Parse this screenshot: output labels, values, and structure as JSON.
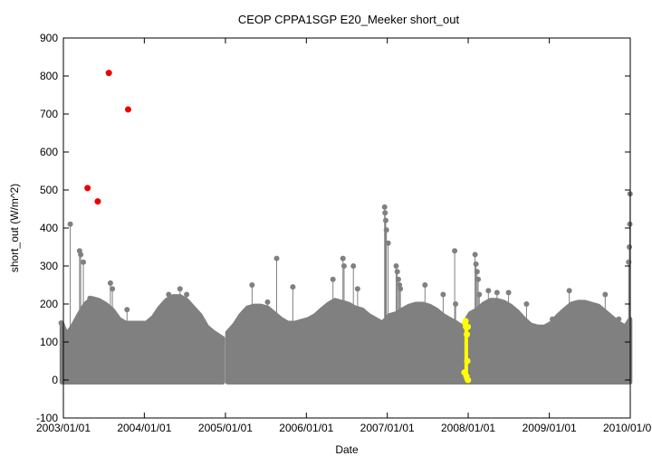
{
  "chart_data": {
    "type": "scatter",
    "title": "CEOP CPPA1SGP E20_Meeker  short_out",
    "xlabel": "Date",
    "ylabel": "short_out (W/m^2)",
    "xlim": [
      "2003-01-01",
      "2010-01-01"
    ],
    "ylim": [
      -100,
      900
    ],
    "x_ticks": [
      "2003/01/01",
      "2004/01/01",
      "2005/01/01",
      "2006/01/01",
      "2007/01/01",
      "2008/01/01",
      "2009/01/01",
      "2010/01/01"
    ],
    "y_ticks": [
      -100,
      0,
      100,
      200,
      300,
      400,
      500,
      600,
      700,
      800,
      900
    ],
    "grid": false,
    "colors": {
      "normal": "#808080",
      "flagged_high": "#ee0000",
      "flagged_yellow": "#ffff00"
    },
    "series": [
      {
        "style": "gray-daily-envelope",
        "envelope": [
          [
            "2002-12-25",
            150
          ],
          [
            "2003-01-15",
            120
          ],
          [
            "2003-02-10",
            140
          ],
          [
            "2003-03-10",
            170
          ],
          [
            "2003-04-10",
            200
          ],
          [
            "2003-05-10",
            215
          ],
          [
            "2003-06-10",
            210
          ],
          [
            "2003-07-10",
            200
          ],
          [
            "2003-08-10",
            185
          ],
          [
            "2003-09-10",
            160
          ],
          [
            "2003-10-10",
            150
          ],
          [
            "2003-11-10",
            150
          ],
          [
            "2003-12-10",
            150
          ],
          [
            "2004-01-10",
            150
          ],
          [
            "2004-02-10",
            165
          ],
          [
            "2004-03-10",
            190
          ],
          [
            "2004-04-10",
            210
          ],
          [
            "2004-05-10",
            220
          ],
          [
            "2004-06-10",
            220
          ],
          [
            "2004-07-10",
            210
          ],
          [
            "2004-08-10",
            190
          ],
          [
            "2004-09-10",
            170
          ],
          [
            "2004-10-10",
            140
          ],
          [
            "2004-11-10",
            125
          ],
          [
            "2004-12-20",
            110
          ],
          null,
          [
            "2005-01-10",
            125
          ],
          [
            "2005-02-10",
            145
          ],
          [
            "2005-03-10",
            170
          ],
          [
            "2005-04-10",
            190
          ],
          [
            "2005-05-10",
            195
          ],
          [
            "2005-06-10",
            195
          ],
          [
            "2005-07-10",
            190
          ],
          [
            "2005-08-10",
            175
          ],
          [
            "2005-09-10",
            160
          ],
          [
            "2005-10-10",
            150
          ],
          [
            "2005-11-10",
            150
          ],
          [
            "2005-12-10",
            155
          ],
          [
            "2006-01-10",
            160
          ],
          [
            "2006-02-10",
            170
          ],
          [
            "2006-03-10",
            185
          ],
          [
            "2006-04-10",
            200
          ],
          [
            "2006-05-10",
            210
          ],
          [
            "2006-06-10",
            205
          ],
          [
            "2006-07-10",
            200
          ],
          [
            "2006-08-10",
            190
          ],
          [
            "2006-09-10",
            185
          ],
          [
            "2006-10-10",
            170
          ],
          [
            "2006-11-10",
            160
          ],
          [
            "2006-12-10",
            150
          ],
          [
            "2007-01-10",
            170
          ],
          [
            "2007-02-10",
            175
          ],
          [
            "2007-03-10",
            185
          ],
          [
            "2007-04-10",
            195
          ],
          [
            "2007-05-10",
            200
          ],
          [
            "2007-06-10",
            200
          ],
          [
            "2007-07-10",
            195
          ],
          [
            "2007-08-10",
            185
          ],
          [
            "2007-09-10",
            170
          ],
          [
            "2007-10-10",
            160
          ],
          [
            "2007-11-10",
            150
          ],
          [
            "2007-12-05",
            140
          ],
          [
            "2008-01-10",
            175
          ],
          [
            "2008-02-10",
            185
          ],
          [
            "2008-03-10",
            200
          ],
          [
            "2008-04-10",
            210
          ],
          [
            "2008-05-10",
            210
          ],
          [
            "2008-06-10",
            205
          ],
          [
            "2008-07-10",
            195
          ],
          [
            "2008-08-10",
            180
          ],
          [
            "2008-09-10",
            160
          ],
          [
            "2008-10-10",
            145
          ],
          [
            "2008-11-10",
            140
          ],
          [
            "2008-12-10",
            140
          ],
          [
            "2009-01-10",
            150
          ],
          [
            "2009-02-10",
            170
          ],
          [
            "2009-03-10",
            185
          ],
          [
            "2009-04-10",
            200
          ],
          [
            "2009-05-10",
            205
          ],
          [
            "2009-06-10",
            205
          ],
          [
            "2009-07-10",
            200
          ],
          [
            "2009-08-10",
            195
          ],
          [
            "2009-09-10",
            180
          ],
          [
            "2009-10-10",
            165
          ],
          [
            "2009-11-10",
            150
          ],
          [
            "2009-12-10",
            140
          ],
          [
            "2009-12-31",
            160
          ]
        ],
        "spikes": [
          [
            "2002-12-22",
            150
          ],
          [
            "2003-02-01",
            410
          ],
          [
            "2003-03-15",
            340
          ],
          [
            "2003-03-20",
            330
          ],
          [
            "2003-04-01",
            310
          ],
          [
            "2003-05-01",
            215
          ],
          [
            "2003-06-15",
            190
          ],
          [
            "2003-08-01",
            255
          ],
          [
            "2003-08-10",
            240
          ],
          [
            "2003-10-15",
            185
          ],
          [
            "2004-04-20",
            225
          ],
          [
            "2004-06-10",
            240
          ],
          [
            "2004-07-10",
            225
          ],
          [
            "2005-05-01",
            250
          ],
          [
            "2005-07-10",
            205
          ],
          [
            "2005-08-20",
            320
          ],
          [
            "2005-11-01",
            245
          ],
          [
            "2006-05-01",
            265
          ],
          [
            "2006-06-15",
            320
          ],
          [
            "2006-06-20",
            300
          ],
          [
            "2006-08-01",
            300
          ],
          [
            "2006-08-20",
            240
          ],
          [
            "2006-12-20",
            455
          ],
          [
            "2006-12-22",
            440
          ],
          [
            "2006-12-25",
            420
          ],
          [
            "2006-12-28",
            395
          ],
          [
            "2007-01-05",
            360
          ],
          [
            "2007-02-10",
            300
          ],
          [
            "2007-02-15",
            285
          ],
          [
            "2007-02-20",
            265
          ],
          [
            "2007-02-25",
            250
          ],
          [
            "2007-03-01",
            240
          ],
          [
            "2007-06-20",
            250
          ],
          [
            "2007-09-10",
            225
          ],
          [
            "2007-11-01",
            340
          ],
          [
            "2007-11-05",
            200
          ],
          [
            "2008-02-01",
            330
          ],
          [
            "2008-02-05",
            305
          ],
          [
            "2008-02-10",
            285
          ],
          [
            "2008-02-15",
            265
          ],
          [
            "2008-02-20",
            225
          ],
          [
            "2008-04-01",
            235
          ],
          [
            "2008-05-10",
            230
          ],
          [
            "2008-07-01",
            230
          ],
          [
            "2008-09-20",
            200
          ],
          [
            "2009-01-15",
            160
          ],
          [
            "2009-04-01",
            235
          ],
          [
            "2009-09-10",
            225
          ],
          [
            "2009-11-10",
            160
          ],
          [
            "2009-12-25",
            310
          ],
          [
            "2009-12-28",
            350
          ],
          [
            "2009-12-30",
            410
          ],
          [
            "2009-12-31",
            490
          ]
        ]
      },
      {
        "style": "red-outliers",
        "points": [
          [
            "2003-04-20",
            505
          ],
          [
            "2003-06-05",
            470
          ],
          [
            "2003-07-25",
            808
          ],
          [
            "2003-10-20",
            712
          ]
        ]
      },
      {
        "style": "yellow-band",
        "x_range": [
          "2007-12-15",
          "2007-12-31"
        ],
        "y_range": [
          0,
          155
        ],
        "points": [
          [
            "2007-12-15",
            20
          ],
          [
            "2007-12-18",
            150
          ],
          [
            "2007-12-20",
            155
          ],
          [
            "2007-12-22",
            140
          ],
          [
            "2007-12-24",
            10
          ],
          [
            "2007-12-26",
            120
          ],
          [
            "2007-12-28",
            50
          ],
          [
            "2007-12-30",
            140
          ],
          [
            "2007-12-31",
            0
          ]
        ]
      }
    ]
  }
}
